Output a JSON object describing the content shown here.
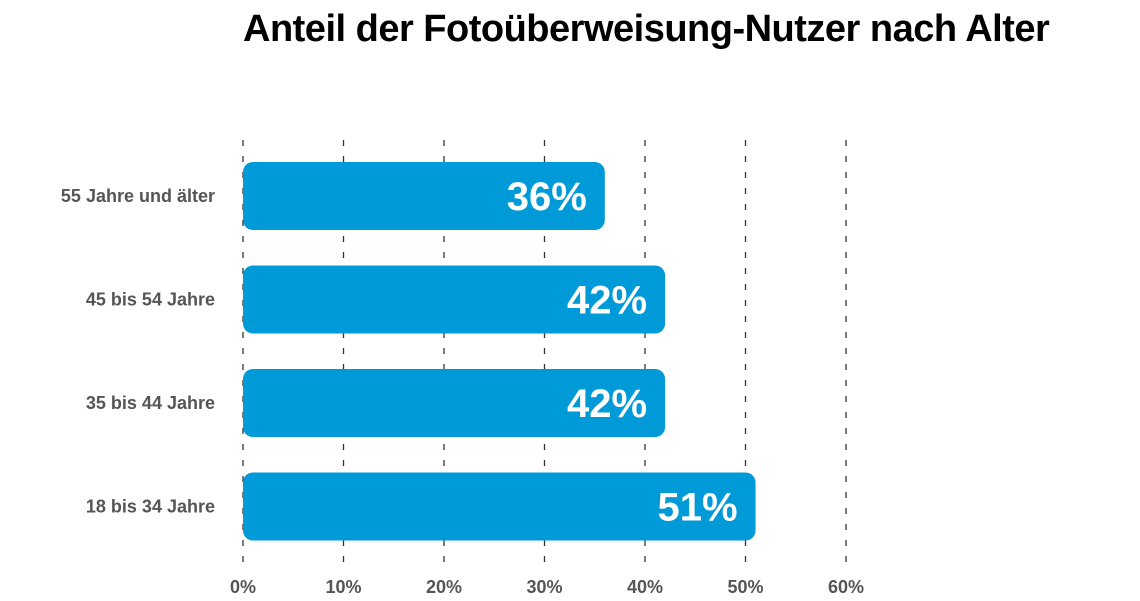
{
  "chart_data": {
    "type": "bar",
    "orientation": "horizontal",
    "title": "Anteil der Fotoüberweisung-Nutzer nach Alter",
    "categories": [
      "55 Jahre und älter",
      "45 bis 54 Jahre",
      "35 bis 44 Jahre",
      "18 bis 34 Jahre"
    ],
    "values": [
      36,
      42,
      42,
      51
    ],
    "value_labels": [
      "36%",
      "42%",
      "42%",
      "51%"
    ],
    "xlim": [
      0,
      60
    ],
    "x_ticks": [
      0,
      10,
      20,
      30,
      40,
      50,
      60
    ],
    "x_tick_labels": [
      "0%",
      "10%",
      "20%",
      "30%",
      "40%",
      "50%",
      "60%"
    ],
    "xlabel": "",
    "ylabel": "",
    "grid": "vertical dashed",
    "legend": "none",
    "colors": {
      "bar": "#009ad9",
      "grid": "#333333",
      "title": "#000000",
      "labels": "#555555",
      "value_text": "#ffffff"
    }
  }
}
